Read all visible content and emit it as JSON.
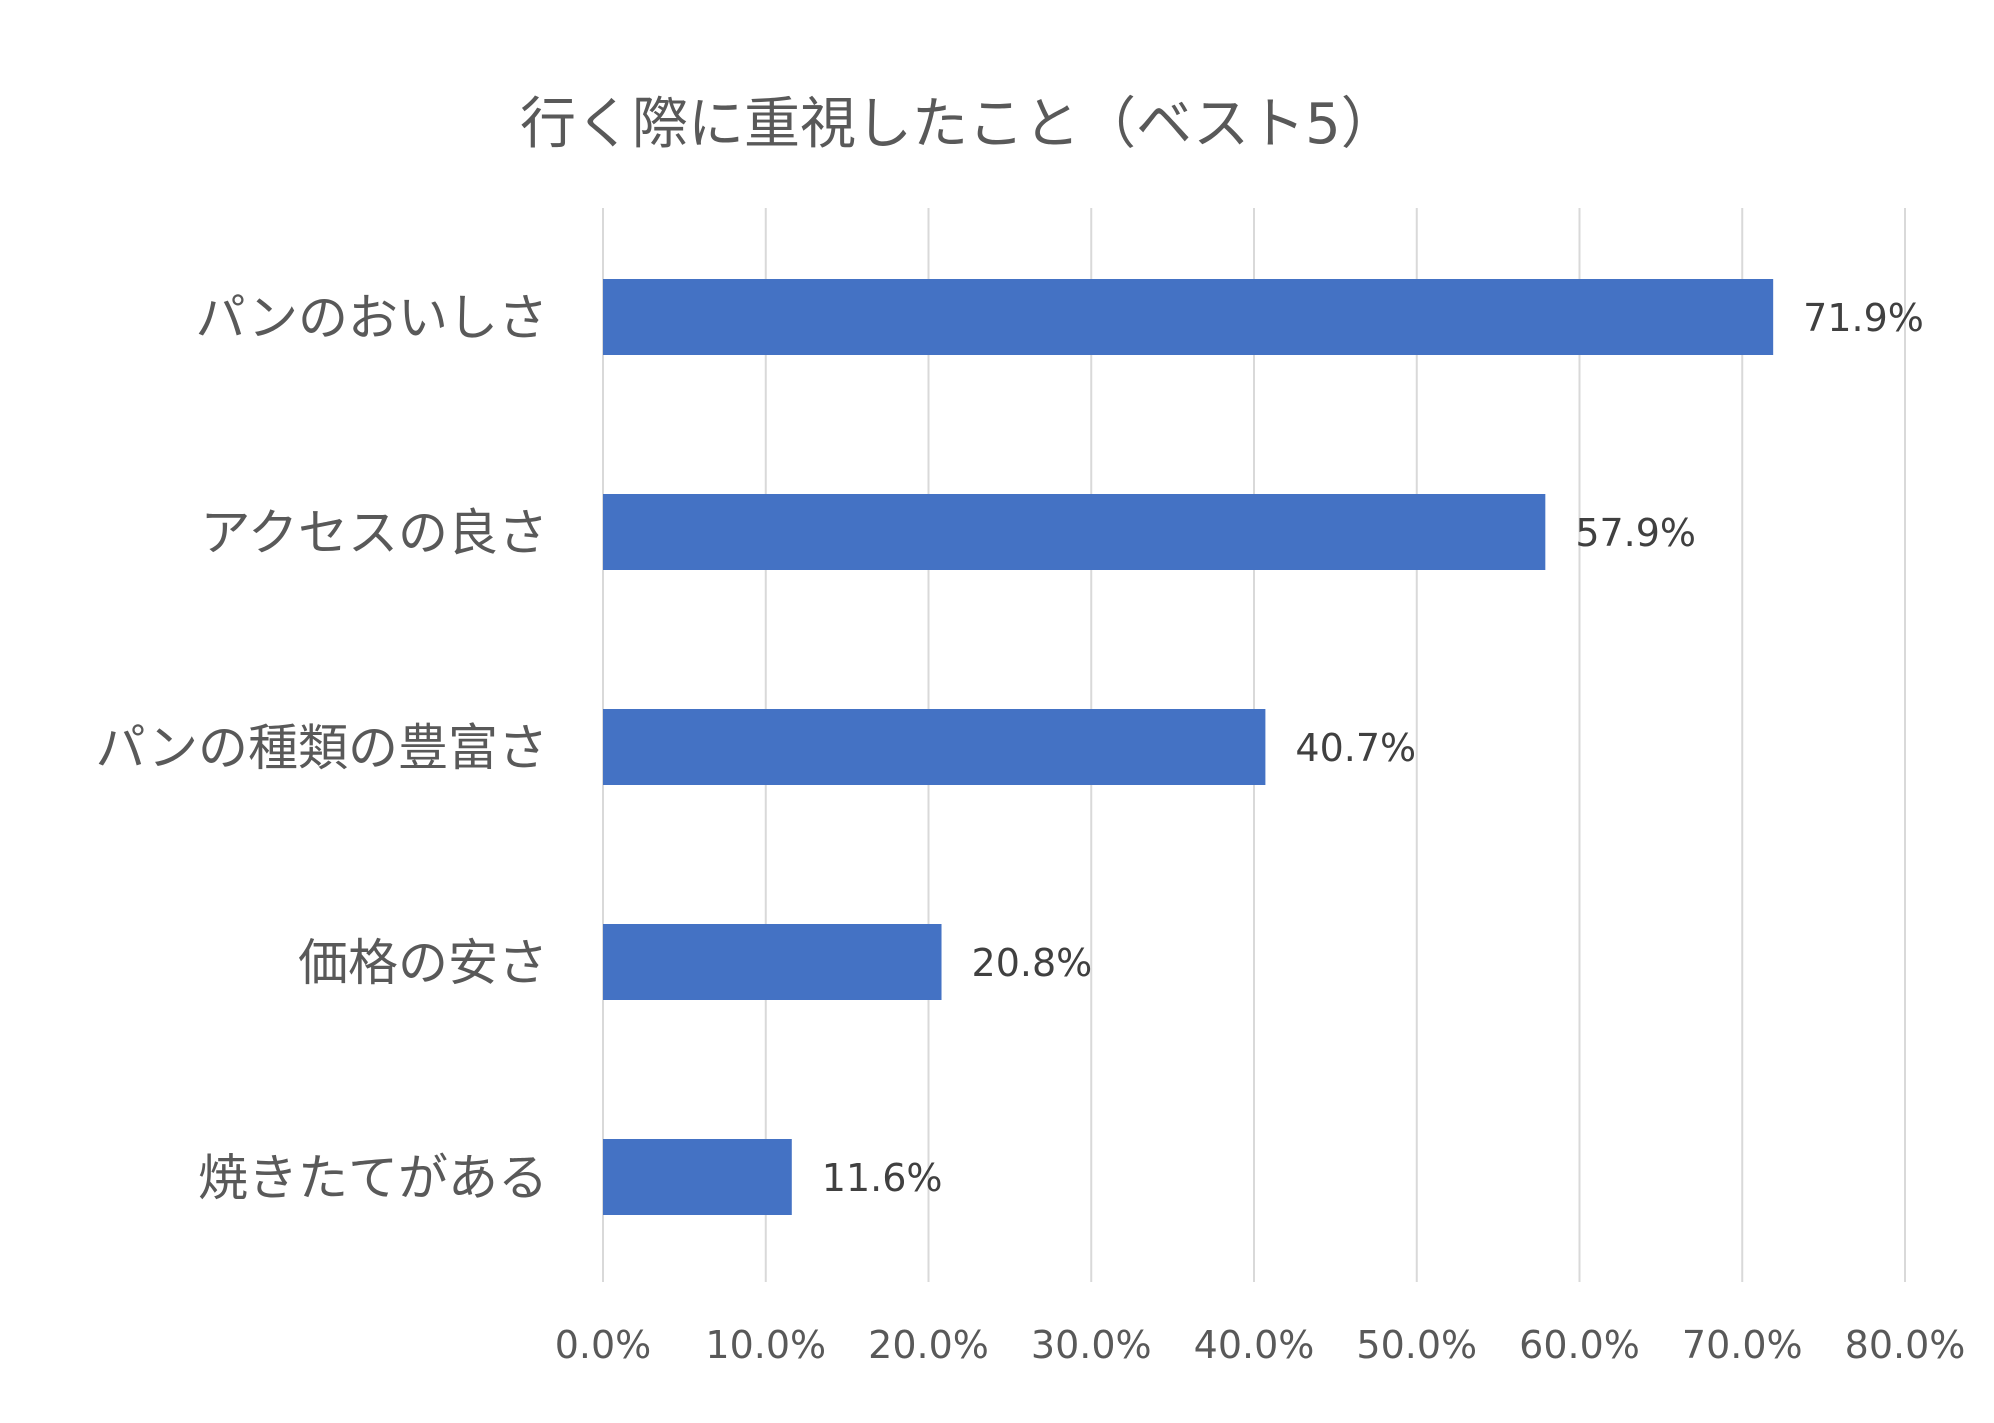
{
  "chart_data": {
    "type": "bar",
    "orientation": "horizontal",
    "title": "行く際に重視したこと（ベスト5）",
    "categories": [
      "パンのおいしさ",
      "アクセスの良さ",
      "パンの種類の豊富さ",
      "価格の安さ",
      "焼きたてがある"
    ],
    "values": [
      71.9,
      57.9,
      40.7,
      20.8,
      11.6
    ],
    "value_labels": [
      "71.9%",
      "57.9%",
      "40.7%",
      "20.8%",
      "11.6%"
    ],
    "xlim": [
      0,
      80
    ],
    "x_ticks": [
      0,
      10,
      20,
      30,
      40,
      50,
      60,
      70,
      80
    ],
    "x_tick_labels": [
      "0.0%",
      "10.0%",
      "20.0%",
      "30.0%",
      "40.0%",
      "50.0%",
      "60.0%",
      "70.0%",
      "80.0%"
    ],
    "xlabel": "",
    "ylabel": "",
    "grid": "vertical",
    "legend": "none",
    "colors": {
      "bar": "#4472C4",
      "grid": "#D9D9D9",
      "title_text": "#595959",
      "category_text": "#595959",
      "tick_text": "#595959",
      "value_text": "#404040"
    }
  }
}
